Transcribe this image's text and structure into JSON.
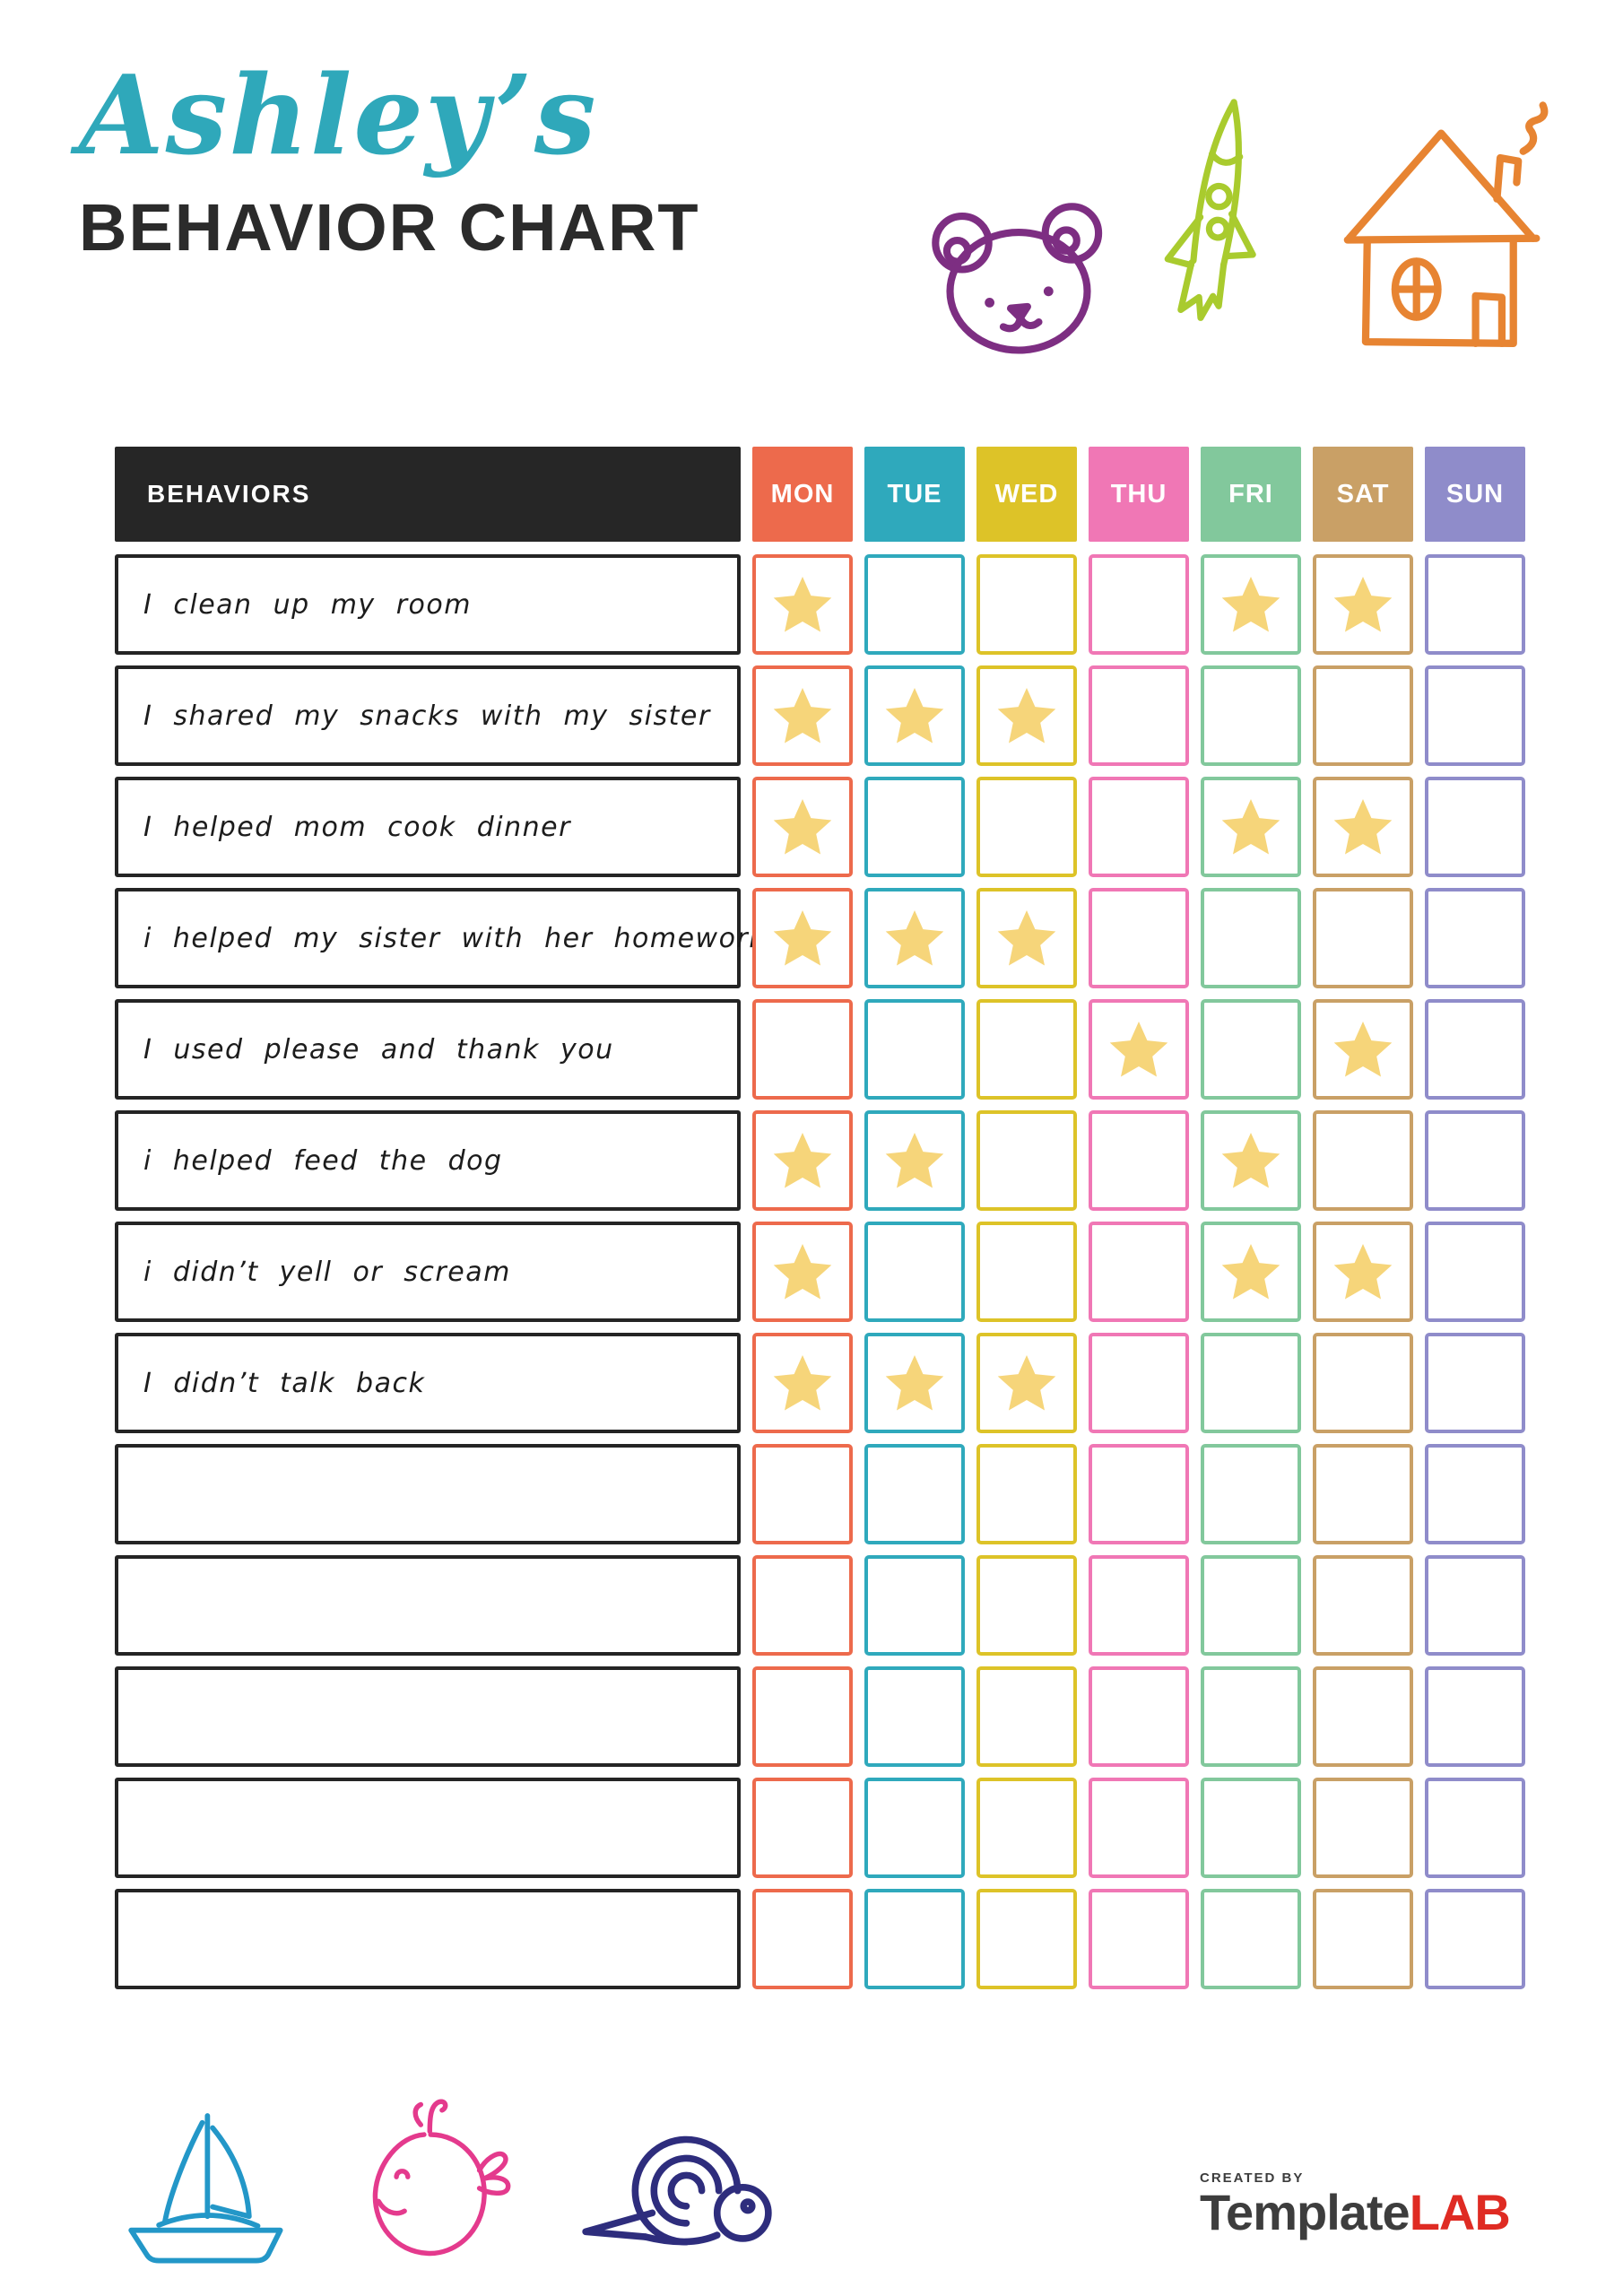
{
  "header": {
    "name_script": "Ashley’s",
    "name_color": "#2fa8ba",
    "title": "BEHAVIOR CHART",
    "title_color": "#2b2b2b",
    "icons": [
      {
        "name": "bear",
        "color": "#7d2e82"
      },
      {
        "name": "rocket",
        "color": "#a9cb2e"
      },
      {
        "name": "house",
        "color": "#e78432"
      }
    ]
  },
  "table": {
    "behaviors_header": "BEHAVIORS",
    "header_bg": "#262626",
    "header_text_color": "#ffffff",
    "star_color": "#f6d57a",
    "days": [
      {
        "label": "MON",
        "color": "#ed6a4c"
      },
      {
        "label": "TUE",
        "color": "#2fa9bc"
      },
      {
        "label": "WED",
        "color": "#ddc328"
      },
      {
        "label": "THU",
        "color": "#f077b5"
      },
      {
        "label": "FRI",
        "color": "#82c89c"
      },
      {
        "label": "SAT",
        "color": "#c9a066"
      },
      {
        "label": "SUN",
        "color": "#8f8cca"
      }
    ],
    "rows": [
      {
        "behavior": "I clean up my room",
        "stars": [
          1,
          0,
          0,
          0,
          1,
          1,
          0
        ]
      },
      {
        "behavior": "I shared my snacks with my sister",
        "stars": [
          1,
          1,
          1,
          0,
          0,
          0,
          0
        ]
      },
      {
        "behavior": "I helped mom cook dinner",
        "stars": [
          1,
          0,
          0,
          0,
          1,
          1,
          0
        ]
      },
      {
        "behavior": "i helped my sister with her homework",
        "stars": [
          1,
          1,
          1,
          0,
          0,
          0,
          0
        ]
      },
      {
        "behavior": "I used please and thank you",
        "stars": [
          0,
          0,
          0,
          1,
          0,
          1,
          0
        ]
      },
      {
        "behavior": "i helped feed the dog",
        "stars": [
          1,
          1,
          0,
          0,
          1,
          0,
          0
        ]
      },
      {
        "behavior": "i didn’t yell or scream",
        "stars": [
          1,
          0,
          0,
          0,
          1,
          1,
          0
        ]
      },
      {
        "behavior": "I didn’t talk back",
        "stars": [
          1,
          1,
          1,
          0,
          0,
          0,
          0
        ]
      },
      {
        "behavior": "",
        "stars": [
          0,
          0,
          0,
          0,
          0,
          0,
          0
        ]
      },
      {
        "behavior": "",
        "stars": [
          0,
          0,
          0,
          0,
          0,
          0,
          0
        ]
      },
      {
        "behavior": "",
        "stars": [
          0,
          0,
          0,
          0,
          0,
          0,
          0
        ]
      },
      {
        "behavior": "",
        "stars": [
          0,
          0,
          0,
          0,
          0,
          0,
          0
        ]
      },
      {
        "behavior": "",
        "stars": [
          0,
          0,
          0,
          0,
          0,
          0,
          0
        ]
      }
    ]
  },
  "footer": {
    "icons": [
      {
        "name": "sailboat",
        "color": "#2397c8"
      },
      {
        "name": "whale",
        "color": "#e43a8d"
      },
      {
        "name": "snail",
        "color": "#2e2d7d"
      }
    ],
    "logo": {
      "created_by": "CREATED BY",
      "brand_main": "Template",
      "brand_accent": "LAB",
      "main_color": "#3d3d3d",
      "accent_color": "#df2b23"
    }
  }
}
